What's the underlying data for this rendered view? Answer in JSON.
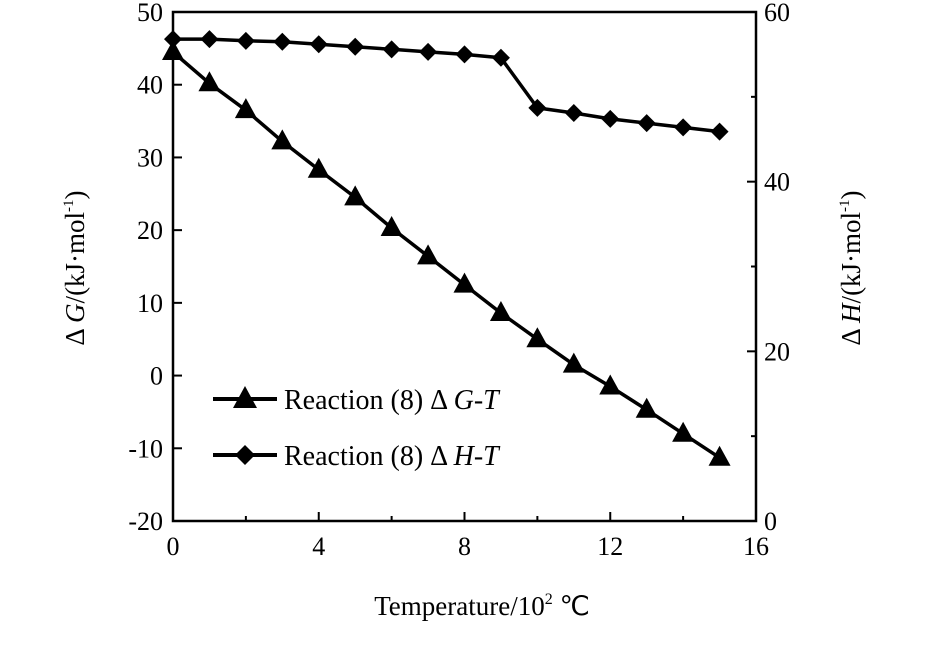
{
  "chart_data": {
    "type": "line",
    "x": [
      0,
      1,
      2,
      3,
      4,
      5,
      6,
      7,
      8,
      9,
      10,
      11,
      12,
      13,
      14,
      15
    ],
    "series": [
      {
        "name": "Reaction (8)  Δ G-T",
        "name_parts": [
          "Reaction (8)  Δ ",
          "G-T"
        ],
        "axis": "left",
        "marker": "triangle",
        "values": [
          44.5,
          40.2,
          36.5,
          32.2,
          28.3,
          24.5,
          20.3,
          16.4,
          12.5,
          8.6,
          5.0,
          1.5,
          -1.5,
          -4.7,
          -8.0,
          -11.3
        ]
      },
      {
        "name": "Reaction (8)  Δ H-T",
        "name_parts": [
          "Reaction (8)  Δ ",
          "H-T"
        ],
        "axis": "right",
        "marker": "diamond",
        "values": [
          56.8,
          56.8,
          56.6,
          56.5,
          56.2,
          55.9,
          55.6,
          55.3,
          55.0,
          54.6,
          48.7,
          48.1,
          47.4,
          46.9,
          46.4,
          45.9
        ]
      }
    ],
    "xlabel": "Temperature/10² ℃",
    "xlabel_parts": [
      "Temperature/10",
      "2",
      " ℃"
    ],
    "ylabel_left": "Δ G/(kJ·mol⁻¹)",
    "ylabel_left_parts": [
      "Δ ",
      "G",
      "/(kJ·mol",
      "-1",
      ")"
    ],
    "ylabel_right": "Δ H/(kJ·mol⁻¹)",
    "ylabel_right_parts": [
      "Δ ",
      "H",
      "/(kJ·mol",
      "-1",
      ")"
    ],
    "xlim": [
      0,
      16
    ],
    "ylim_left": [
      -20,
      50
    ],
    "ylim_right": [
      0,
      60
    ],
    "x_ticks": [
      "0",
      "4",
      "8",
      "12",
      "16"
    ],
    "y_left_ticks": [
      "-20",
      "-10",
      "0",
      "10",
      "20",
      "30",
      "40",
      "50"
    ],
    "y_right_ticks": [
      "0",
      "20",
      "40",
      "60"
    ],
    "grid": false,
    "legend_position": "bottom-left",
    "line_color": "#000000"
  }
}
